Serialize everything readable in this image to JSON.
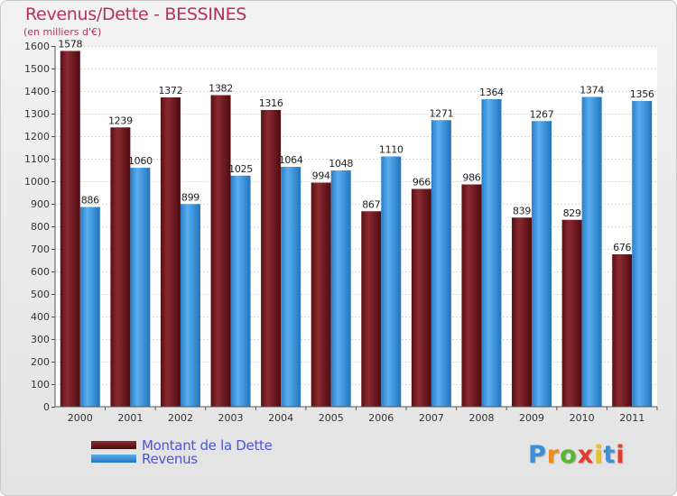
{
  "header": {
    "title": "Revenus/Dette - BESSINES",
    "subtitle": "(en milliers d'€)"
  },
  "chart_data": {
    "type": "bar",
    "categories": [
      "2000",
      "2001",
      "2002",
      "2003",
      "2004",
      "2005",
      "2006",
      "2007",
      "2008",
      "2009",
      "2010",
      "2011"
    ],
    "series": [
      {
        "name": "Montant de la Dette",
        "values": [
          1578,
          1239,
          1372,
          1382,
          1316,
          994,
          867,
          966,
          986,
          839,
          829,
          676
        ],
        "color": "#7a1c22"
      },
      {
        "name": "Revenus",
        "values": [
          886,
          1060,
          899,
          1025,
          1064,
          1048,
          1110,
          1271,
          1364,
          1267,
          1374,
          1356
        ],
        "color": "#3f9be0"
      }
    ],
    "ylim": [
      0,
      1600
    ],
    "yticks": [
      0,
      100,
      200,
      300,
      400,
      500,
      600,
      700,
      800,
      900,
      1000,
      1100,
      1200,
      1300,
      1400,
      1500,
      1600
    ],
    "grid": true,
    "legend_position": "bottom-left"
  },
  "logo": {
    "letters": [
      "P",
      "r",
      "o",
      "x",
      "i",
      "t",
      "i"
    ],
    "colors": [
      "#3a8fd8",
      "#f08a1c",
      "#5bb534",
      "#e33b2e",
      "#f0c020",
      "#3a8fd8",
      "#e33b2e"
    ]
  }
}
